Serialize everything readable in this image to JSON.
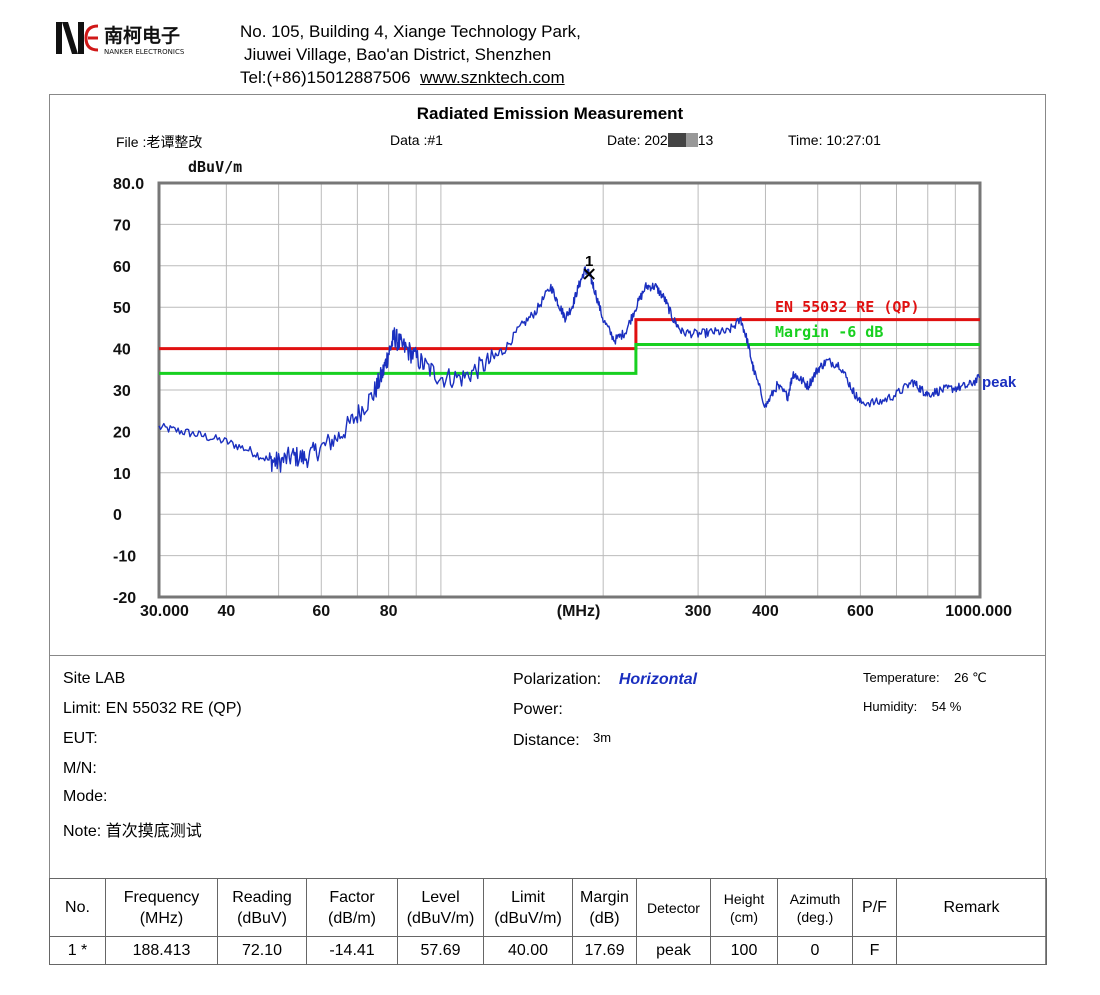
{
  "company": {
    "logo_text": "南柯电子",
    "logo_sub": "NANKER ELECTRONICS",
    "address_line1": "No. 105, Building 4, Xiange Technology Park,",
    "address_line2": "Jiuwei Village, Bao'an District, Shenzhen",
    "tel": "Tel:(+86)15012887506",
    "website": "www.sznktech.com"
  },
  "header": {
    "file": "File :老谭整改",
    "data": "Data :#1",
    "date_prefix": "Date: 202",
    "date_suffix": "13",
    "time": "Time: 10:27:01"
  },
  "colors": {
    "limit": "#e01010",
    "margin": "#18d020",
    "trace": "#1a2fbf",
    "grid": "#bbbbbb",
    "frame": "#777777"
  },
  "chart_data": {
    "type": "line",
    "title": "Radiated Emission Measurement",
    "ylabel": "dBuV/m",
    "xlabel": "(MHz)",
    "x_scale": "log",
    "xlim": [
      30,
      1000
    ],
    "ylim": [
      -20,
      80
    ],
    "y_ticks": [
      {
        "v": 80,
        "label": "80.0"
      },
      {
        "v": 70,
        "label": "70"
      },
      {
        "v": 60,
        "label": "60"
      },
      {
        "v": 50,
        "label": "50"
      },
      {
        "v": 40,
        "label": "40"
      },
      {
        "v": 30,
        "label": "30"
      },
      {
        "v": 20,
        "label": "20"
      },
      {
        "v": 10,
        "label": "10"
      },
      {
        "v": 0,
        "label": "0"
      },
      {
        "v": -10,
        "label": "-10"
      },
      {
        "v": -20,
        "label": "-20"
      }
    ],
    "x_ticks": [
      {
        "v": 30,
        "label": "30.000"
      },
      {
        "v": 40,
        "label": "40"
      },
      {
        "v": 60,
        "label": "60"
      },
      {
        "v": 80,
        "label": "80"
      },
      {
        "v": 180,
        "label": "(MHz)"
      },
      {
        "v": 300,
        "label": "300"
      },
      {
        "v": 400,
        "label": "400"
      },
      {
        "v": 600,
        "label": "600"
      },
      {
        "v": 1000,
        "label": "1000.000"
      }
    ],
    "x_grid": [
      30,
      40,
      50,
      60,
      70,
      80,
      90,
      100,
      200,
      300,
      400,
      500,
      600,
      700,
      800,
      900,
      1000
    ],
    "series": [
      {
        "name": "EN 55032 RE (QP)",
        "kind": "limit",
        "step_x": [
          30,
          230,
          230,
          1000
        ],
        "step_y": [
          40,
          40,
          47,
          47
        ]
      },
      {
        "name": "Margin -6 dB",
        "kind": "margin",
        "step_x": [
          30,
          230,
          230,
          1000
        ],
        "step_y": [
          34,
          34,
          41,
          41
        ]
      },
      {
        "name": "peak",
        "kind": "trace",
        "x": [
          30,
          33,
          36,
          40,
          44,
          48,
          50,
          53,
          56,
          60,
          65,
          70,
          75,
          78,
          80,
          82,
          84,
          88,
          93,
          100,
          110,
          120,
          130,
          140,
          150,
          160,
          165,
          170,
          175,
          180,
          185,
          188.4,
          192,
          200,
          210,
          220,
          230,
          240,
          250,
          260,
          270,
          280,
          300,
          320,
          340,
          360,
          370,
          380,
          400,
          420,
          440,
          450,
          460,
          480,
          500,
          520,
          550,
          580,
          600,
          650,
          700,
          750,
          780,
          800,
          850,
          900,
          950,
          1000
        ],
        "y": [
          21,
          20,
          19,
          17.5,
          15.5,
          13,
          12.5,
          14,
          13.5,
          16,
          19,
          24,
          29,
          34,
          39,
          43,
          41,
          39,
          36,
          33,
          33,
          36,
          39,
          45,
          49,
          55,
          51,
          47.5,
          50,
          55,
          59,
          58,
          55,
          47,
          42,
          44,
          50,
          55,
          55,
          52,
          47,
          44,
          43.5,
          44,
          44,
          47,
          42,
          35,
          26,
          31,
          28.5,
          34,
          33,
          31,
          35,
          37,
          36,
          30,
          27,
          27,
          29,
          32,
          30,
          29,
          30,
          30.5,
          31,
          33
        ]
      }
    ],
    "labels": {
      "limit": "EN 55032 RE (QP)",
      "margin": "Margin -6 dB",
      "trace": "peak",
      "marker": "1"
    },
    "marker": {
      "x": 188.413,
      "y": 58
    }
  },
  "info": {
    "site": "Site  LAB",
    "limit": "Limit:  EN 55032 RE (QP)",
    "eut": "EUT:",
    "mn": "M/N:",
    "mode": "Mode:",
    "note": "Note:  首次摸底测试",
    "polarization_label": "Polarization:",
    "polarization_value": "Horizontal",
    "power": "Power:",
    "distance_label": "Distance:",
    "distance_value": "3m",
    "temperature_label": "Temperature:",
    "temperature_value": "26 ℃",
    "humidity_label": "Humidity:",
    "humidity_value": "54 %"
  },
  "table": {
    "headers": [
      [
        "No."
      ],
      [
        "Frequency",
        "(MHz)"
      ],
      [
        "Reading",
        "(dBuV)"
      ],
      [
        "Factor",
        "(dB/m)"
      ],
      [
        "Level",
        "(dBuV/m)"
      ],
      [
        "Limit",
        "(dBuV/m)"
      ],
      [
        "Margin",
        "(dB)"
      ],
      [
        "Detector"
      ],
      [
        "Height",
        "(cm)"
      ],
      [
        "Azimuth",
        "(deg.)"
      ],
      [
        "P/F"
      ],
      [
        "Remark"
      ]
    ],
    "rows": [
      [
        "1  *",
        "188.413",
        "72.10",
        "-14.41",
        "57.69",
        "40.00",
        "17.69",
        "peak",
        "100",
        "0",
        "F",
        ""
      ]
    ]
  }
}
